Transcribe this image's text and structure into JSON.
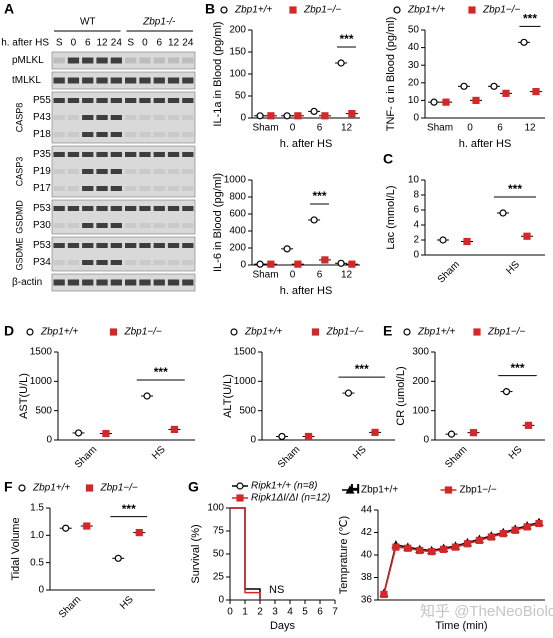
{
  "blot": {
    "panel": "A",
    "groups": [
      "WT",
      "Zbp1-/-"
    ],
    "row_label": "h. after HS",
    "lanes": [
      "S",
      "0",
      "6",
      "12",
      "24",
      "S",
      "0",
      "6",
      "12",
      "24"
    ],
    "blocks": [
      {
        "protein": "pMLKL",
        "bands": []
      },
      {
        "protein": "tMLKL",
        "bands": []
      },
      {
        "protein": "CASP8",
        "bands": [
          "P55",
          "P43",
          "P18"
        ]
      },
      {
        "protein": "CASP3",
        "bands": [
          "P35",
          "P19",
          "P17"
        ]
      },
      {
        "protein": "GSDMD",
        "bands": [
          "P53",
          "P30"
        ]
      },
      {
        "protein": "GSDME",
        "bands": [
          "P53",
          "P34"
        ]
      },
      {
        "protein": "β-actin",
        "bands": []
      }
    ]
  },
  "chart_data": [
    {
      "type": "dot",
      "panel": "B",
      "y_label": "IL-1a in Blood (pg/ml)",
      "x_label": "h. after HS",
      "legend": "top",
      "categories": [
        "Sham",
        "0",
        "6",
        "12"
      ],
      "ylim": [
        0,
        200
      ],
      "yticks": [
        0,
        50,
        100,
        150,
        200
      ],
      "series": [
        {
          "name": "Zbp1+/+",
          "color": "#000000",
          "marker": "circle",
          "values": [
            5,
            5,
            15,
            125
          ]
        },
        {
          "name": "Zbp1−/−",
          "color": "#d62728",
          "marker": "square",
          "values": [
            5,
            5,
            5,
            10
          ]
        }
      ],
      "annotation": {
        "text": "***",
        "x": "12"
      }
    },
    {
      "type": "dot",
      "y_label": "TNF- α in Blood (pg/ml)",
      "x_label": "h. after HS",
      "legend": "top",
      "categories": [
        "Sham",
        "0",
        "6",
        "12"
      ],
      "ylim": [
        0,
        50
      ],
      "yticks": [
        0,
        10,
        20,
        30,
        40,
        50
      ],
      "series": [
        {
          "name": "Zbp1+/+",
          "color": "#000000",
          "marker": "circle",
          "values": [
            9,
            18,
            18,
            43
          ]
        },
        {
          "name": "Zbp1−/−",
          "color": "#d62728",
          "marker": "square",
          "values": [
            9,
            10,
            14,
            15
          ]
        }
      ],
      "annotation": {
        "text": "***",
        "x": "12"
      }
    },
    {
      "type": "dot",
      "y_label": "IL-6 in Blood (pg/ml)",
      "x_label": "h. after HS",
      "legend": "none",
      "categories": [
        "Sham",
        "0",
        "6",
        "12"
      ],
      "ylim": [
        0,
        1000
      ],
      "yticks": [
        0,
        200,
        400,
        600,
        800,
        1000
      ],
      "series": [
        {
          "name": "Zbp1+/+",
          "color": "#000000",
          "marker": "circle",
          "values": [
            10,
            190,
            530,
            20
          ]
        },
        {
          "name": "Zbp1−/−",
          "color": "#d62728",
          "marker": "square",
          "values": [
            10,
            10,
            60,
            10
          ]
        }
      ],
      "annotation": {
        "text": "***",
        "x": "6"
      }
    },
    {
      "type": "dot",
      "panel": "C",
      "y_label": "Lac (mmol/L)",
      "legend": "none",
      "categories": [
        "Sham",
        "HS"
      ],
      "ylim": [
        0,
        10
      ],
      "yticks": [
        0,
        2,
        4,
        6,
        8,
        10
      ],
      "series": [
        {
          "name": "Zbp1+/+",
          "color": "#000000",
          "marker": "circle",
          "values": [
            2,
            5.6
          ]
        },
        {
          "name": "Zbp1−/−",
          "color": "#d62728",
          "marker": "square",
          "values": [
            1.8,
            2.5
          ]
        }
      ],
      "annotation": {
        "text": "***",
        "x": "HS"
      }
    },
    {
      "type": "dot",
      "panel": "D",
      "y_label": "AST(U/L)",
      "legend": "top",
      "categories": [
        "Sham",
        "HS"
      ],
      "ylim": [
        0,
        1500
      ],
      "yticks": [
        0,
        500,
        1000,
        1500
      ],
      "series": [
        {
          "name": "Zbp1+/+",
          "color": "#000000",
          "marker": "circle",
          "values": [
            120,
            750
          ]
        },
        {
          "name": "Zbp1−/−",
          "color": "#d62728",
          "marker": "square",
          "values": [
            110,
            180
          ]
        }
      ],
      "annotation": {
        "text": "***",
        "x": "HS"
      }
    },
    {
      "type": "dot",
      "y_label": "ALT(U/L)",
      "legend": "top",
      "categories": [
        "Sham",
        "HS"
      ],
      "ylim": [
        0,
        1500
      ],
      "yticks": [
        0,
        500,
        1000,
        1500
      ],
      "series": [
        {
          "name": "Zbp1+/+",
          "color": "#000000",
          "marker": "circle",
          "values": [
            60,
            800
          ]
        },
        {
          "name": "Zbp1−/−",
          "color": "#d62728",
          "marker": "square",
          "values": [
            60,
            130
          ]
        }
      ],
      "annotation": {
        "text": "***",
        "x": "HS"
      }
    },
    {
      "type": "dot",
      "panel": "E",
      "y_label": "CR (umol/L)",
      "legend": "top",
      "categories": [
        "Sham",
        "HS"
      ],
      "ylim": [
        0,
        300
      ],
      "yticks": [
        0,
        100,
        200,
        300
      ],
      "series": [
        {
          "name": "Zbp1+/+",
          "color": "#000000",
          "marker": "circle",
          "values": [
            20,
            165
          ]
        },
        {
          "name": "Zbp1−/−",
          "color": "#d62728",
          "marker": "square",
          "values": [
            25,
            50
          ]
        }
      ],
      "annotation": {
        "text": "***",
        "x": "HS"
      }
    },
    {
      "type": "dot",
      "panel": "F",
      "y_label": "Tidal Volume",
      "legend": "top",
      "categories": [
        "Sham",
        "HS"
      ],
      "ylim": [
        0,
        1.5
      ],
      "yticks": [
        0,
        0.5,
        {
          "value": 1,
          "label": "1.0"
        },
        1.5
      ],
      "series": [
        {
          "name": "Zbp1+/+",
          "color": "#000000",
          "marker": "circle",
          "values": [
            1.13,
            0.58
          ]
        },
        {
          "name": "Zbp1−/−",
          "color": "#d62728",
          "marker": "square",
          "values": [
            1.17,
            1.05
          ]
        }
      ],
      "annotation": {
        "text": "***",
        "x": "HS"
      }
    },
    {
      "type": "line",
      "panel": "G",
      "y_label": "Survival (%)",
      "x_label": "Days",
      "legend": "top",
      "xlim": [
        0,
        7
      ],
      "xticks": [
        0,
        1,
        2,
        3,
        4,
        5,
        6,
        7
      ],
      "ylim": [
        0,
        100
      ],
      "yticks": [
        0,
        25,
        50,
        75,
        100
      ],
      "series": [
        {
          "name": "Ripk1+/+ (n=8)",
          "color": "#000000",
          "marker": "circle",
          "x": [
            0,
            1,
            1,
            2,
            2
          ],
          "values": [
            100,
            100,
            12,
            12,
            0
          ]
        },
        {
          "name": "Ripk1ΔI/ΔI (n=12)",
          "color": "#d62728",
          "marker": "square",
          "x": [
            0,
            1,
            1,
            2,
            2
          ],
          "values": [
            100,
            100,
            8,
            8,
            0
          ]
        }
      ],
      "annotation": {
        "text": "NS",
        "x": 2.6
      }
    },
    {
      "type": "line",
      "panel": "H",
      "y_label": "Temprature (℃)",
      "x_label": "Time (min)",
      "legend": "top",
      "x": [
        0,
        1,
        2,
        3,
        4,
        5,
        6,
        7,
        8,
        9,
        10,
        11,
        12,
        13
      ],
      "xlim": [
        -0.5,
        13.5
      ],
      "ylim": [
        36,
        44
      ],
      "yticks": [
        36,
        38,
        40,
        42,
        44
      ],
      "series": [
        {
          "name": "Zbp1+/+",
          "color": "#000000",
          "marker": "triangle",
          "values": [
            36.6,
            40.9,
            40.7,
            40.5,
            40.4,
            40.6,
            40.8,
            41.1,
            41.4,
            41.7,
            42.0,
            42.3,
            42.6,
            42.9
          ]
        },
        {
          "name": "Zbp1−/−",
          "color": "#d62728",
          "marker": "square",
          "values": [
            36.5,
            40.7,
            40.6,
            40.4,
            40.3,
            40.5,
            40.7,
            41.0,
            41.3,
            41.6,
            41.9,
            42.2,
            42.5,
            42.8
          ]
        }
      ]
    }
  ],
  "watermark": "知乎 @TheNeoBiologist"
}
